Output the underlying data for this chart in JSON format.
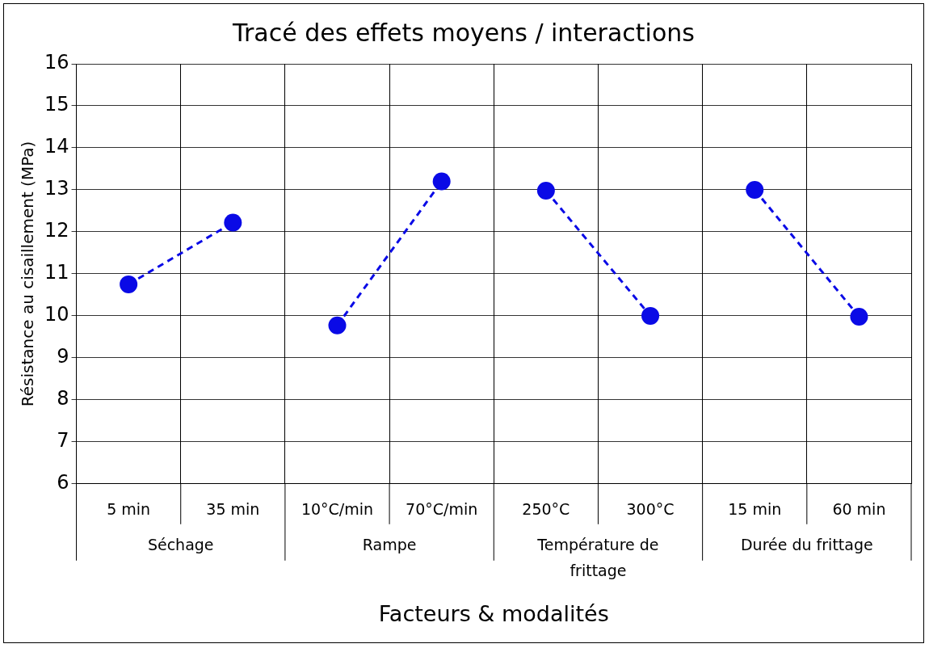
{
  "chart_data": {
    "type": "line",
    "title": "Tracé des effets moyens / interactions",
    "xlabel": "Facteurs & modalités",
    "ylabel": "Résistance au cisaillement (MPa)",
    "categories": [
      "5 min",
      "35 min",
      "10°C/min",
      "70°C/min",
      "250°C",
      "300°C",
      "15 min",
      "60 min"
    ],
    "series": [
      {
        "color": "#0a0ae6",
        "values": [
          10.75,
          12.22,
          null,
          null,
          null,
          null,
          null,
          null
        ]
      },
      {
        "color": "#0a0ae6",
        "values": [
          null,
          null,
          9.77,
          13.2,
          null,
          null,
          null,
          null
        ]
      },
      {
        "color": "#0a0ae6",
        "values": [
          null,
          null,
          null,
          null,
          12.98,
          10.0,
          null,
          null
        ]
      },
      {
        "color": "#0a0ae6",
        "values": [
          null,
          null,
          null,
          null,
          null,
          null,
          13.0,
          9.98
        ]
      }
    ],
    "annotations": [
      "Séchage",
      "Rampe",
      "Température de frittage",
      "Durée du frittage"
    ],
    "ylim": [
      6,
      16
    ],
    "yticks": [
      6,
      7,
      8,
      9,
      10,
      11,
      12,
      13,
      14,
      15,
      16
    ],
    "grid": true,
    "legend": false,
    "marker": "circle",
    "line_style": "dashed"
  }
}
